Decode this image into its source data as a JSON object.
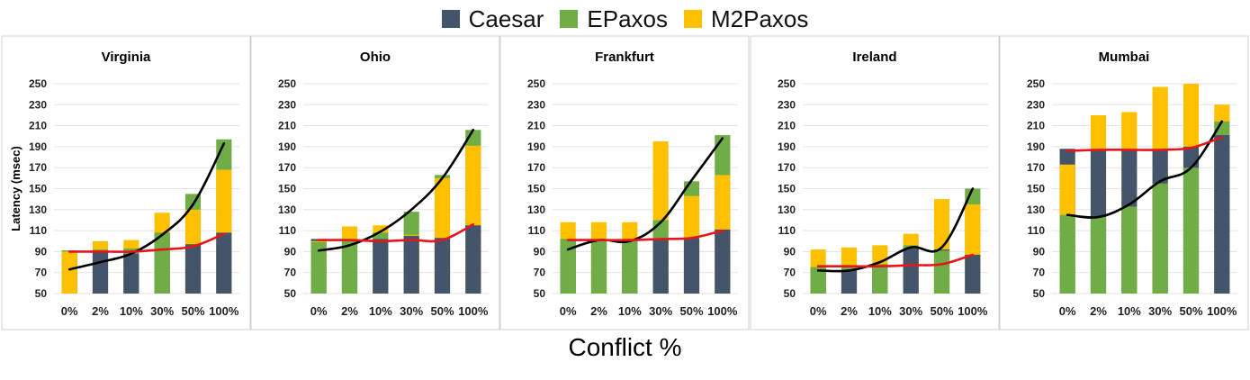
{
  "legend": [
    {
      "name": "Caesar",
      "color": "#44546a"
    },
    {
      "name": "EPaxos",
      "color": "#70ad47"
    },
    {
      "name": "M2Paxos",
      "color": "#ffc000"
    }
  ],
  "xlabel": "Conflict %",
  "ylabel": "Latency (msec)",
  "colors": {
    "Caesar": "#44546a",
    "EPaxos": "#70ad47",
    "M2Paxos": "#ffc000",
    "caesar_line": "#000000",
    "m2paxos_line": "#e8141b"
  },
  "chart_data": [
    {
      "type": "bar",
      "title": "Virginia",
      "categories": [
        "0%",
        "2%",
        "10%",
        "30%",
        "50%",
        "100%"
      ],
      "ylim": [
        50,
        250
      ],
      "yticks": [
        50,
        70,
        90,
        110,
        130,
        150,
        170,
        190,
        210,
        230,
        250
      ],
      "series": [
        {
          "name": "Caesar",
          "values": [
            91,
            90,
            88,
            108,
            97,
            108
          ]
        },
        {
          "name": "EPaxos",
          "values": [
            91,
            92,
            93,
            108,
            145,
            197
          ]
        },
        {
          "name": "M2Paxos",
          "values": [
            90,
            100,
            101,
            127,
            130,
            168
          ]
        }
      ],
      "lines": [
        {
          "name": "Caesar",
          "values": [
            73,
            80,
            88,
            106,
            135,
            193
          ]
        },
        {
          "name": "M2Paxos",
          "values": [
            90,
            90,
            90,
            92,
            95,
            107
          ]
        }
      ]
    },
    {
      "type": "bar",
      "title": "Ohio",
      "categories": [
        "0%",
        "2%",
        "10%",
        "30%",
        "50%",
        "100%"
      ],
      "ylim": [
        50,
        250
      ],
      "yticks": [
        50,
        70,
        90,
        110,
        130,
        150,
        170,
        190,
        210,
        230,
        250
      ],
      "series": [
        {
          "name": "Caesar",
          "values": [
            102,
            100,
            102,
            105,
            103,
            115
          ]
        },
        {
          "name": "EPaxos",
          "values": [
            99,
            100,
            108,
            128,
            163,
            206
          ]
        },
        {
          "name": "M2Paxos",
          "values": [
            100,
            114,
            115,
            106,
            160,
            191
          ]
        }
      ],
      "lines": [
        {
          "name": "Caesar",
          "values": [
            91,
            96,
            109,
            130,
            160,
            206
          ]
        },
        {
          "name": "M2Paxos",
          "values": [
            101,
            101,
            100,
            101,
            101,
            116
          ]
        }
      ]
    },
    {
      "type": "bar",
      "title": "Frankfurt",
      "categories": [
        "0%",
        "2%",
        "10%",
        "30%",
        "50%",
        "100%"
      ],
      "ylim": [
        50,
        250
      ],
      "yticks": [
        50,
        70,
        90,
        110,
        130,
        150,
        170,
        190,
        210,
        230,
        250
      ],
      "series": [
        {
          "name": "Caesar",
          "values": [
            102,
            100,
            100,
            102,
            103,
            111
          ]
        },
        {
          "name": "EPaxos",
          "values": [
            102,
            100,
            100,
            120,
            157,
            201
          ]
        },
        {
          "name": "M2Paxos",
          "values": [
            118,
            118,
            118,
            195,
            143,
            163
          ]
        }
      ],
      "lines": [
        {
          "name": "Caesar",
          "values": [
            92,
            101,
            100,
            118,
            158,
            198
          ]
        },
        {
          "name": "M2Paxos",
          "values": [
            101,
            101,
            101,
            102,
            103,
            110
          ]
        }
      ]
    },
    {
      "type": "bar",
      "title": "Ireland",
      "categories": [
        "0%",
        "2%",
        "10%",
        "30%",
        "50%",
        "100%"
      ],
      "ylim": [
        50,
        250
      ],
      "yticks": [
        50,
        70,
        90,
        110,
        130,
        150,
        170,
        190,
        210,
        230,
        250
      ],
      "series": [
        {
          "name": "Caesar",
          "values": [
            75,
            72,
            78,
            93,
            92,
            87
          ]
        },
        {
          "name": "EPaxos",
          "values": [
            75,
            76,
            78,
            96,
            91,
            150
          ]
        },
        {
          "name": "M2Paxos",
          "values": [
            92,
            94,
            96,
            107,
            140,
            135
          ]
        }
      ],
      "lines": [
        {
          "name": "Caesar",
          "values": [
            72,
            72,
            80,
            94,
            94,
            150
          ]
        },
        {
          "name": "M2Paxos",
          "values": [
            76,
            76,
            76,
            77,
            78,
            87
          ]
        }
      ]
    },
    {
      "type": "bar",
      "title": "Mumbai",
      "categories": [
        "0%",
        "2%",
        "10%",
        "30%",
        "50%",
        "100%"
      ],
      "ylim": [
        50,
        250
      ],
      "yticks": [
        50,
        70,
        90,
        110,
        130,
        150,
        170,
        190,
        210,
        230,
        250
      ],
      "series": [
        {
          "name": "Caesar",
          "values": [
            188,
            186,
            187,
            186,
            190,
            201
          ]
        },
        {
          "name": "EPaxos",
          "values": [
            125,
            123,
            133,
            155,
            170,
            214
          ]
        },
        {
          "name": "M2Paxos",
          "values": [
            173,
            220,
            223,
            247,
            250,
            230
          ]
        }
      ],
      "lines": [
        {
          "name": "Caesar",
          "values": [
            125,
            123,
            135,
            157,
            170,
            214
          ]
        },
        {
          "name": "M2Paxos",
          "values": [
            186,
            187,
            187,
            187,
            189,
            199
          ]
        }
      ]
    }
  ]
}
